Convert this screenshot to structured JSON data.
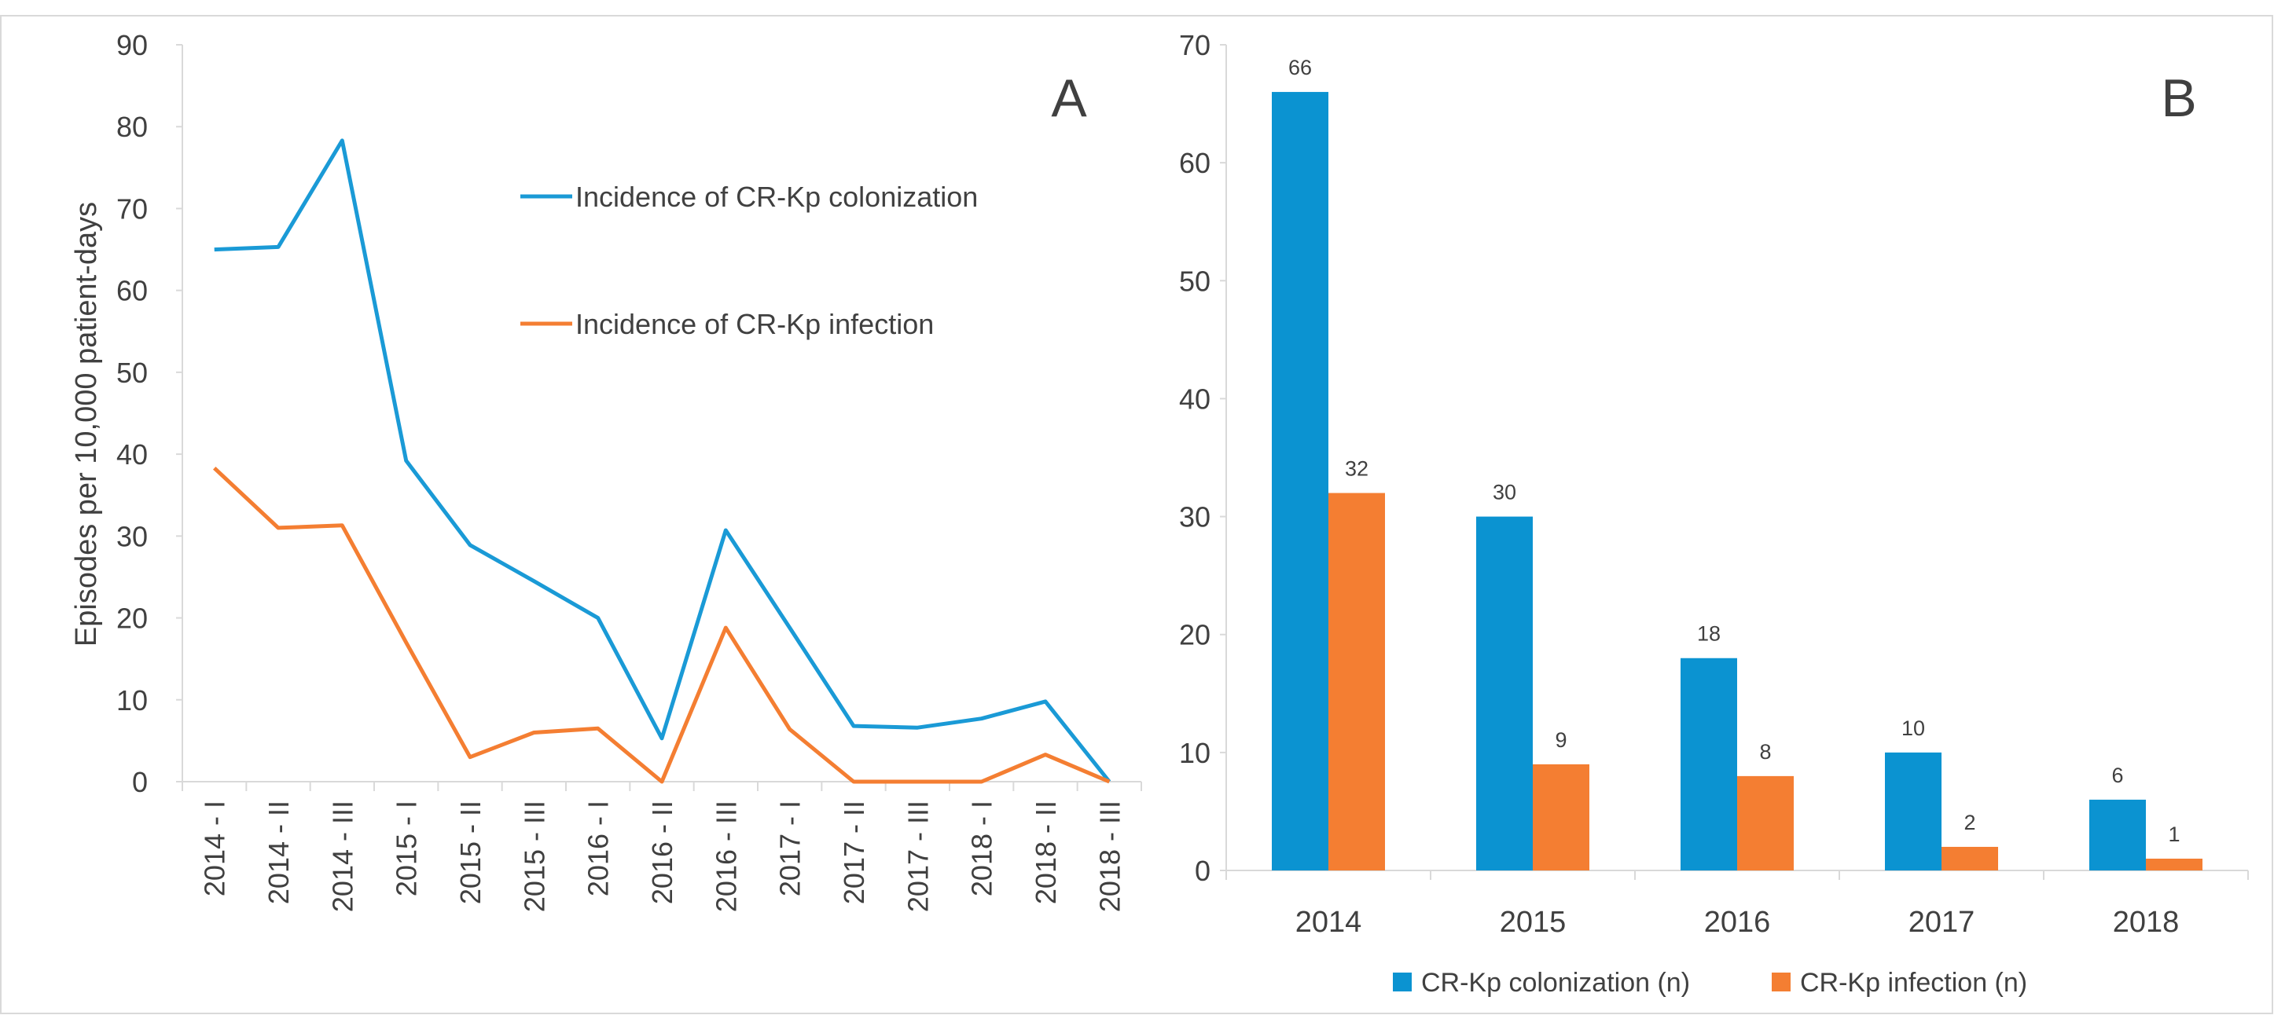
{
  "panels": {
    "a_label": "A",
    "b_label": "B"
  },
  "colors": {
    "colonization": "#1a9ad6",
    "infection": "#f47e32",
    "axis": "#d9d9d9",
    "text": "#404040"
  },
  "chart_data": [
    {
      "type": "line",
      "panel": "A",
      "title": "",
      "xlabel": "",
      "ylabel": "Episodes per 10,000 patient-days",
      "ylim": [
        0,
        90
      ],
      "yticks": [
        "0",
        "10",
        "20",
        "30",
        "40",
        "50",
        "60",
        "70",
        "80",
        "90"
      ],
      "categories": [
        "2014 - I",
        "2014 - II",
        "2014 - III",
        "2015 - I",
        "2015 - II",
        "2015 - III",
        "2016 - I",
        "2016 - II",
        "2016 - III",
        "2017 - I",
        "2017 - II",
        "2017 - III",
        "2018 - I",
        "2018 - II",
        "2018 - III"
      ],
      "series": [
        {
          "name": "Incidence of CR-Kp colonization",
          "color": "#1a9ad6",
          "values": [
            65,
            65.3,
            78.3,
            39.2,
            28.9,
            24.5,
            20,
            5.3,
            30.7,
            18.8,
            6.8,
            6.6,
            7.7,
            9.8,
            0
          ]
        },
        {
          "name": "Incidence of CR-Kp infection",
          "color": "#f47e32",
          "values": [
            38.3,
            31,
            31.3,
            17,
            3,
            6,
            6.5,
            0,
            18.8,
            6.4,
            0,
            0,
            0,
            3.3,
            0
          ]
        }
      ],
      "legend_position": "top-center",
      "grid": false
    },
    {
      "type": "bar",
      "panel": "B",
      "title": "",
      "xlabel": "",
      "ylabel": "",
      "ylim": [
        0,
        70
      ],
      "yticks": [
        "0",
        "10",
        "20",
        "30",
        "40",
        "50",
        "60",
        "70"
      ],
      "categories": [
        "2014",
        "2015",
        "2016",
        "2017",
        "2018"
      ],
      "series": [
        {
          "name": "CR-Kp colonization (n)",
          "color": "#0b93d1",
          "values": [
            66,
            30,
            18,
            10,
            6
          ]
        },
        {
          "name": "CR-Kp infection (n)",
          "color": "#f47e32",
          "values": [
            32,
            9,
            8,
            2,
            1
          ]
        }
      ],
      "data_labels": true,
      "legend_position": "bottom",
      "grid": false
    }
  ]
}
